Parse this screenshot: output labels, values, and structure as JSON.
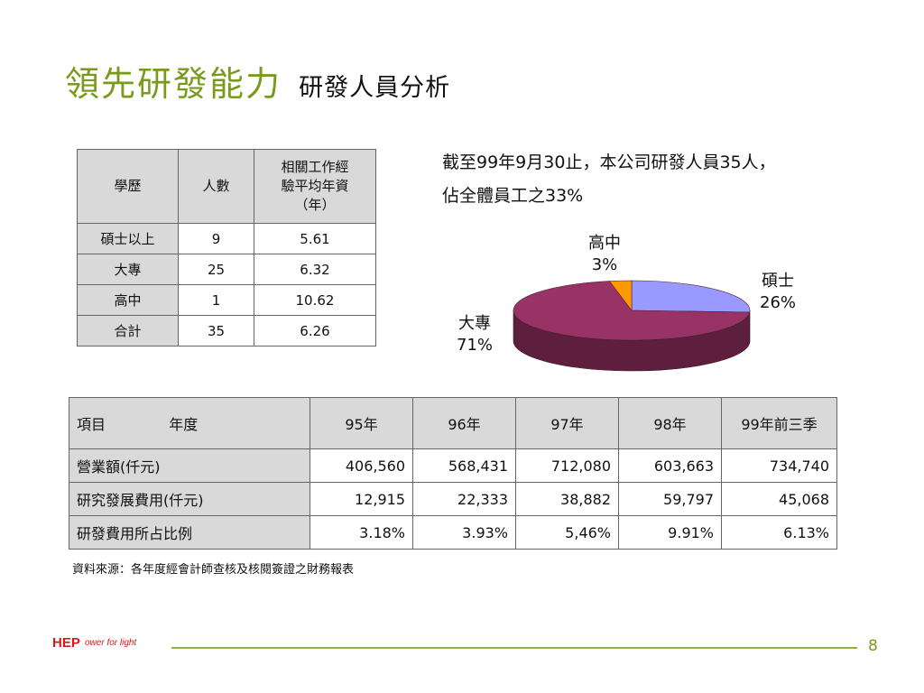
{
  "title": {
    "main": "領先研發能力",
    "sub": "研發人員分析"
  },
  "edu_table": {
    "headers": [
      "學歷",
      "人數",
      "相關工作經",
      "驗平均年資",
      "（年）"
    ],
    "rows": [
      [
        "碩士以上",
        "9",
        "5.61"
      ],
      [
        "大專",
        "25",
        "6.32"
      ],
      [
        "高中",
        "1",
        "10.62"
      ],
      [
        "合計",
        "35",
        "6.26"
      ]
    ]
  },
  "summary": {
    "line1": "截至99年9月30止，本公司研發人員35人，",
    "line2": "佔全體員工之33%"
  },
  "chart_data": {
    "type": "pie",
    "labels": [
      "碩士",
      "大專",
      "高中"
    ],
    "values": [
      26,
      71,
      3
    ],
    "value_labels": [
      "26%",
      "71%",
      "3%"
    ],
    "colors": [
      "#9999ff",
      "#993366",
      "#ff9900"
    ],
    "side_color": "#5e1f3e",
    "style": "3d"
  },
  "fin_table": {
    "headers": [
      "項目",
      "年度",
      "95年",
      "96年",
      "97年",
      "98年",
      "99年前三季"
    ],
    "rows": [
      {
        "label": "營業額(仟元)",
        "values": [
          "406,560",
          "568,431",
          "712,080",
          "603,663",
          "734,740"
        ]
      },
      {
        "label": "研究發展費用(仟元)",
        "values": [
          "12,915",
          "22,333",
          "38,882",
          "59,797",
          "45,068"
        ]
      },
      {
        "label": "研發費用所占比例",
        "values": [
          "3.18%",
          "3.93%",
          "5,46%",
          "9.91%",
          "6.13%"
        ]
      }
    ]
  },
  "source": "資料來源：各年度經會計師查核及核閱簽證之財務報表",
  "logo": {
    "brand": "HEP",
    "tagline": "ower for light"
  },
  "page_number": "8"
}
